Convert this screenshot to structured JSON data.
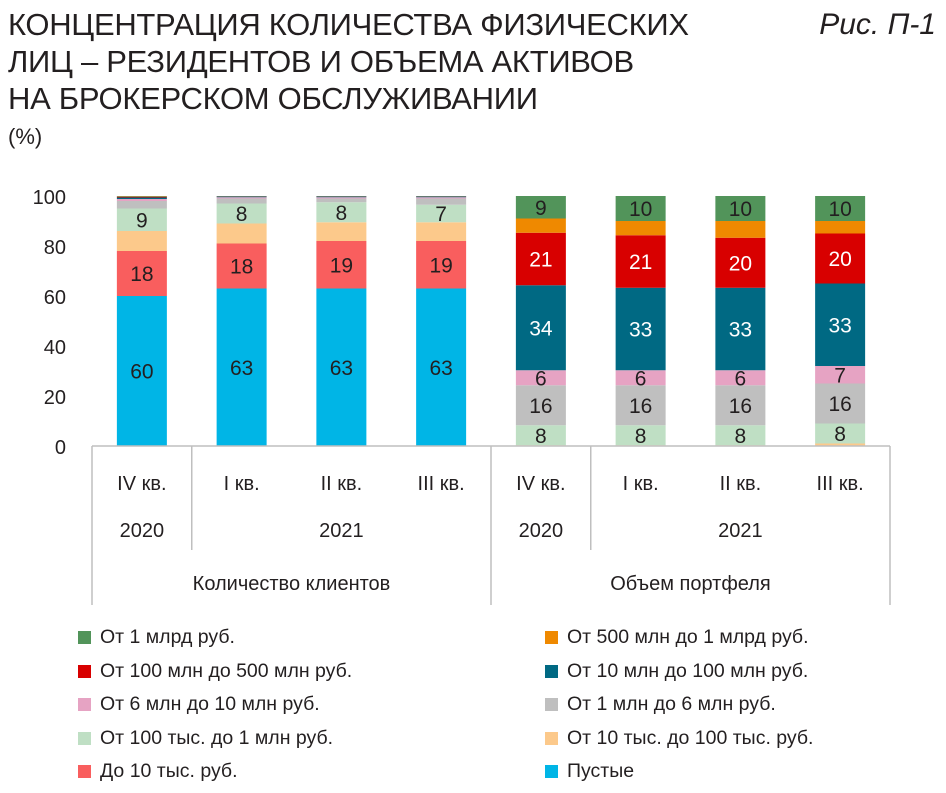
{
  "header": {
    "title_lines": [
      "КОНЦЕНТРАЦИЯ КОЛИЧЕСТВА ФИЗИЧЕСКИХ",
      "ЛИЦ – РЕЗИДЕНТОВ И ОБЪЕМА АКТИВОВ",
      "НА БРОКЕРСКОМ ОБСЛУЖИВАНИИ"
    ],
    "figure_label": "Рис. П-1",
    "unit": "(%)"
  },
  "chart_data": {
    "type": "bar",
    "stacked": true,
    "ylim": [
      0,
      100
    ],
    "yticks": [
      0,
      20,
      40,
      60,
      80,
      100
    ],
    "grid": false,
    "categories": [
      {
        "quarter": "IV кв.",
        "year": "2020",
        "group": "Количество клиентов"
      },
      {
        "quarter": "I кв.",
        "year": "2021",
        "group": "Количество клиентов"
      },
      {
        "quarter": "II кв.",
        "year": "2021",
        "group": "Количество клиентов"
      },
      {
        "quarter": "III кв.",
        "year": "2021",
        "group": "Количество клиентов"
      },
      {
        "quarter": "IV кв.",
        "year": "2020",
        "group": "Объем портфеля"
      },
      {
        "quarter": "I кв.",
        "year": "2021",
        "group": "Объем портфеля"
      },
      {
        "quarter": "II кв.",
        "year": "2021",
        "group": "Объем портфеля"
      },
      {
        "quarter": "III кв.",
        "year": "2021",
        "group": "Объем портфеля"
      }
    ],
    "year_groups": [
      {
        "label": "2020",
        "span": [
          0,
          0
        ]
      },
      {
        "label": "2021",
        "span": [
          1,
          3
        ]
      },
      {
        "label": "2020",
        "span": [
          4,
          4
        ]
      },
      {
        "label": "2021",
        "span": [
          5,
          7
        ]
      }
    ],
    "main_groups": [
      {
        "label": "Количество клиентов",
        "span": [
          0,
          3
        ]
      },
      {
        "label": "Объем портфеля",
        "span": [
          4,
          7
        ]
      }
    ],
    "series": [
      {
        "name": "Пустые",
        "color": "#00b5e6",
        "values": [
          60,
          63,
          63,
          63,
          0,
          0,
          0,
          0
        ],
        "labels": [
          "60",
          "63",
          "63",
          "63",
          "",
          "",
          "",
          ""
        ],
        "label_color": "#231f20"
      },
      {
        "name": "До 10 тыс. руб.",
        "color": "#f95e5e",
        "values": [
          18,
          18,
          19,
          19,
          0,
          0,
          0,
          0
        ],
        "labels": [
          "18",
          "18",
          "19",
          "19",
          "",
          "",
          "",
          ""
        ],
        "label_color": "#231f20"
      },
      {
        "name": "От 10 тыс. до 100 тыс. руб.",
        "color": "#fcc98b",
        "values": [
          8,
          8,
          7.5,
          7.5,
          0.3,
          0.3,
          0.3,
          1
        ],
        "labels": [
          "",
          "",
          "",
          "",
          "",
          "",
          "",
          ""
        ],
        "label_color": "#231f20"
      },
      {
        "name": "От 100 тыс. до 1 млн руб.",
        "color": "#bfdfc4",
        "values": [
          9,
          8,
          8,
          7,
          8,
          8,
          8,
          8
        ],
        "labels": [
          "9",
          "8",
          "8",
          "7",
          "8",
          "8",
          "8",
          "8"
        ],
        "label_color": "#231f20"
      },
      {
        "name": "От 1 млн до 6 млн руб.",
        "color": "#bfbfbf",
        "values": [
          3,
          2,
          1.5,
          2.5,
          16,
          16,
          16,
          16
        ],
        "labels": [
          "",
          "",
          "",
          "",
          "16",
          "16",
          "16",
          "16"
        ],
        "label_color": "#231f20"
      },
      {
        "name": "От 6 млн до 10 млн руб.",
        "color": "#e6a3c3",
        "values": [
          0.8,
          0.5,
          0.5,
          0.5,
          6,
          6,
          6,
          7
        ],
        "labels": [
          "",
          "",
          "",
          "",
          "6",
          "6",
          "6",
          "7"
        ],
        "label_color": "#231f20"
      },
      {
        "name": "От 10 млн до 100 млн руб.",
        "color": "#006983",
        "values": [
          0.6,
          0.3,
          0.3,
          0.3,
          34,
          33,
          33,
          33
        ],
        "labels": [
          "",
          "",
          "",
          "",
          "34",
          "33",
          "33",
          "33"
        ],
        "label_color": "#ffffff"
      },
      {
        "name": "От 100 млн до 500 млн руб.",
        "color": "#d80000",
        "values": [
          0.3,
          0.1,
          0.1,
          0.1,
          21,
          21,
          20,
          20
        ],
        "labels": [
          "",
          "",
          "",
          "",
          "21",
          "21",
          "20",
          "20"
        ],
        "label_color": "#ffffff"
      },
      {
        "name": "От 500 млн до 1 млрд руб.",
        "color": "#ef8900",
        "values": [
          0.1,
          0.05,
          0.05,
          0.05,
          5.7,
          5.7,
          6.7,
          5
        ],
        "labels": [
          "",
          "",
          "",
          "",
          "",
          "",
          "",
          ""
        ],
        "label_color": "#231f20"
      },
      {
        "name": "От 1 млрд руб.",
        "color": "#52945a",
        "values": [
          0.2,
          0.05,
          0.05,
          0.05,
          9,
          10,
          10,
          10
        ],
        "labels": [
          "",
          "",
          "",
          "",
          "9",
          "10",
          "10",
          "10"
        ],
        "label_color": "#231f20"
      }
    ],
    "legend": {
      "placement": "bottom",
      "columns": 2,
      "order": [
        "От 1 млрд руб.",
        "От 500 млн до 1 млрд руб.",
        "От 100 млн до 500 млн руб.",
        "От 10 млн до 100 млн руб.",
        "От 6 млн до 10 млн руб.",
        "От 1 млн до 6 млн руб.",
        "От 100 тыс. до 1 млн руб.",
        "От 10 тыс. до 100 тыс. руб.",
        "До 10 тыс. руб.",
        "Пустые"
      ]
    }
  }
}
